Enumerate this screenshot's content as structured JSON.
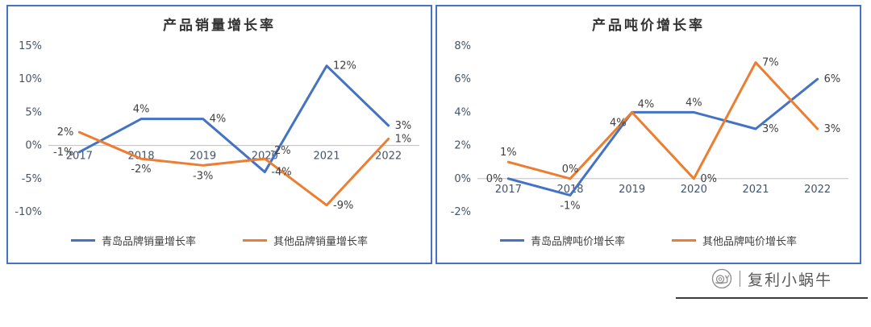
{
  "theme": {
    "background": "#ffffff",
    "panel_border": "#4472C4",
    "axis_text": "#44546A",
    "data_label": "#404040",
    "zero_line": "#BFBFBF"
  },
  "chart_data": [
    {
      "type": "line",
      "title": "产品销量增长率",
      "categories": [
        "2017",
        "2018",
        "2019",
        "2020",
        "2021",
        "2022"
      ],
      "ylim": [
        -10,
        15
      ],
      "yticks": [
        -10,
        -5,
        0,
        5,
        10,
        15
      ],
      "ytick_labels": [
        "-10%",
        "-5%",
        "0%",
        "5%",
        "10%",
        "15%"
      ],
      "grid": "zero-line-only",
      "legend_position": "bottom",
      "series": [
        {
          "name": "青岛品牌销量增长率",
          "color": "#4472C4",
          "values": [
            -1,
            4,
            4,
            -4,
            12,
            3
          ],
          "labels": [
            "-1%",
            "4%",
            "4%",
            "-4%",
            "12%",
            "3%"
          ],
          "label_pos": [
            "left",
            "above",
            "right",
            "right",
            "right",
            "right"
          ]
        },
        {
          "name": "其他品牌销量增长率",
          "color": "#ED7D31",
          "values": [
            2,
            -2,
            -3,
            -2,
            -9,
            1
          ],
          "labels": [
            "2%",
            "-2%",
            "-3%",
            "-2%",
            "-9%",
            "1%"
          ],
          "label_pos": [
            "left",
            "below",
            "below",
            "above-right",
            "right",
            "right"
          ]
        }
      ]
    },
    {
      "type": "line",
      "title": "产品吨价增长率",
      "categories": [
        "2017",
        "2018",
        "2019",
        "2020",
        "2021",
        "2022"
      ],
      "ylim": [
        -2,
        8
      ],
      "yticks": [
        -2,
        0,
        2,
        4,
        6,
        8
      ],
      "ytick_labels": [
        "-2%",
        "0%",
        "2%",
        "4%",
        "6%",
        "8%"
      ],
      "grid": "zero-line-only",
      "legend_position": "bottom",
      "series": [
        {
          "name": "青岛品牌吨价增长率",
          "color": "#4472C4",
          "values": [
            0,
            -1,
            4,
            4,
            3,
            6
          ],
          "labels": [
            "0%",
            "-1%",
            "4%",
            "4%",
            "3%",
            "6%"
          ],
          "label_pos": [
            "left",
            "below",
            "above-right",
            "above",
            "right",
            "right"
          ]
        },
        {
          "name": "其他品牌吨价增长率",
          "color": "#ED7D31",
          "values": [
            1,
            0,
            4,
            0,
            7,
            3
          ],
          "labels": [
            "1%",
            "0%",
            "4%",
            "0%",
            "7%",
            "3%"
          ],
          "label_pos": [
            "above",
            "above",
            "below-left",
            "right",
            "right",
            "right"
          ]
        }
      ]
    }
  ],
  "watermark": {
    "icon": "snail",
    "separator": "|",
    "name": "复利小蜗牛"
  }
}
